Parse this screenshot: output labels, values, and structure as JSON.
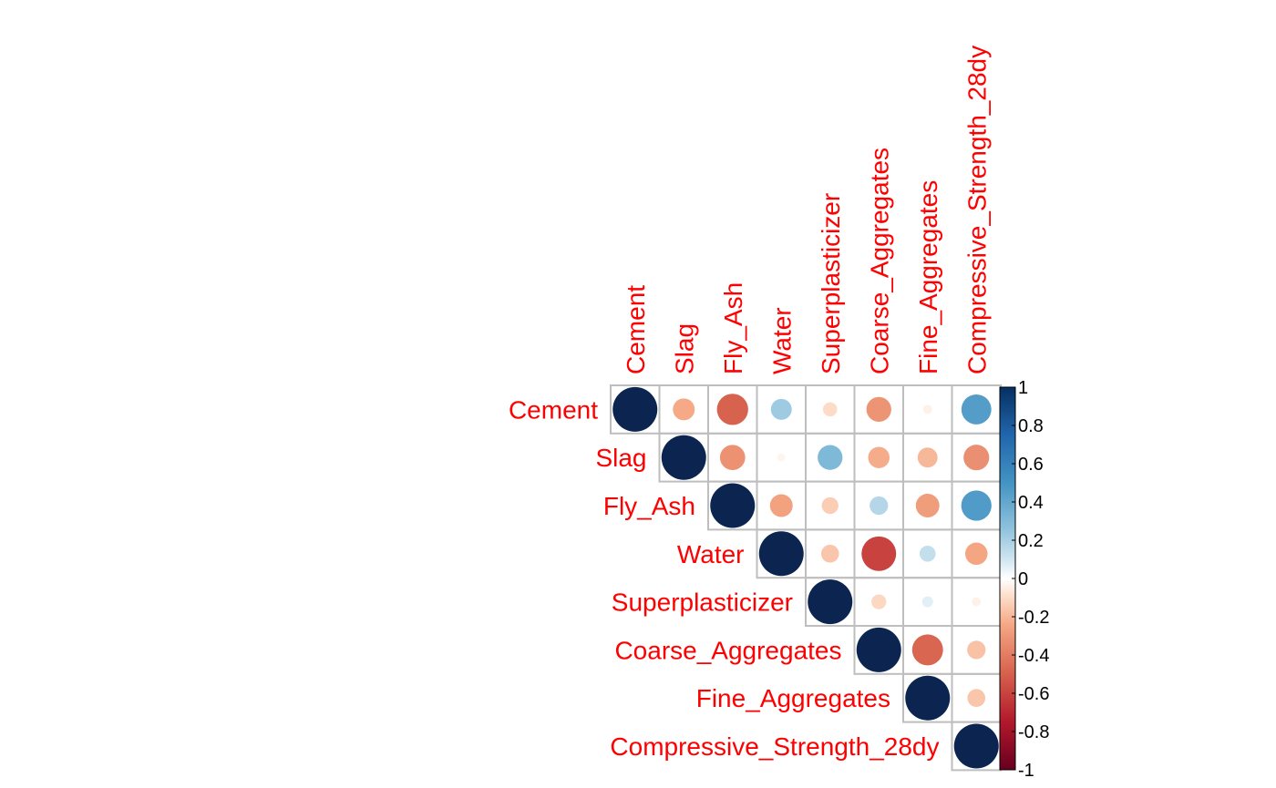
{
  "chart_data": {
    "type": "heatmap",
    "style": "upper-triangle circle correlation matrix",
    "variables": [
      "Cement",
      "Slag",
      "Fly_Ash",
      "Water",
      "Superplasticizer",
      "Coarse_Aggregates",
      "Fine_Aggregates",
      "Compressive_Strength_28dy"
    ],
    "matrix": [
      [
        1.0,
        -0.24,
        -0.49,
        0.22,
        -0.1,
        -0.31,
        -0.04,
        0.45
      ],
      [
        null,
        1.0,
        -0.32,
        -0.03,
        0.31,
        -0.23,
        -0.2,
        -0.33
      ],
      [
        null,
        null,
        1.0,
        -0.26,
        -0.14,
        0.17,
        -0.28,
        0.46
      ],
      [
        null,
        null,
        null,
        1.0,
        -0.16,
        -0.6,
        0.13,
        -0.25
      ],
      [
        null,
        null,
        null,
        null,
        1.0,
        -0.11,
        0.06,
        -0.04
      ],
      [
        null,
        null,
        null,
        null,
        null,
        1.0,
        -0.48,
        -0.17
      ],
      [
        null,
        null,
        null,
        null,
        null,
        null,
        1.0,
        -0.16
      ],
      [
        null,
        null,
        null,
        null,
        null,
        null,
        null,
        1.0
      ]
    ],
    "color_scale": {
      "range": [
        -1,
        1
      ],
      "ticks": [
        "1",
        "0.8",
        "0.6",
        "0.4",
        "0.2",
        "0",
        "-0.2",
        "-0.4",
        "-0.6",
        "-0.8",
        "-1"
      ],
      "stops": [
        {
          "value": -1.0,
          "color": "#67001f"
        },
        {
          "value": -0.75,
          "color": "#b2182b"
        },
        {
          "value": -0.5,
          "color": "#d6604d"
        },
        {
          "value": -0.25,
          "color": "#f4a582"
        },
        {
          "value": -0.1,
          "color": "#fddbc7"
        },
        {
          "value": 0.0,
          "color": "#ffffff"
        },
        {
          "value": 0.1,
          "color": "#d1e5f0"
        },
        {
          "value": 0.25,
          "color": "#92c5de"
        },
        {
          "value": 0.5,
          "color": "#4393c3"
        },
        {
          "value": 0.75,
          "color": "#2166ac"
        },
        {
          "value": 1.0,
          "color": "#053061"
        }
      ]
    },
    "legend_placement": "right",
    "label_color": "#ff0000",
    "grid_color": "#bebebe",
    "diagonal_color": "#0b2550"
  }
}
